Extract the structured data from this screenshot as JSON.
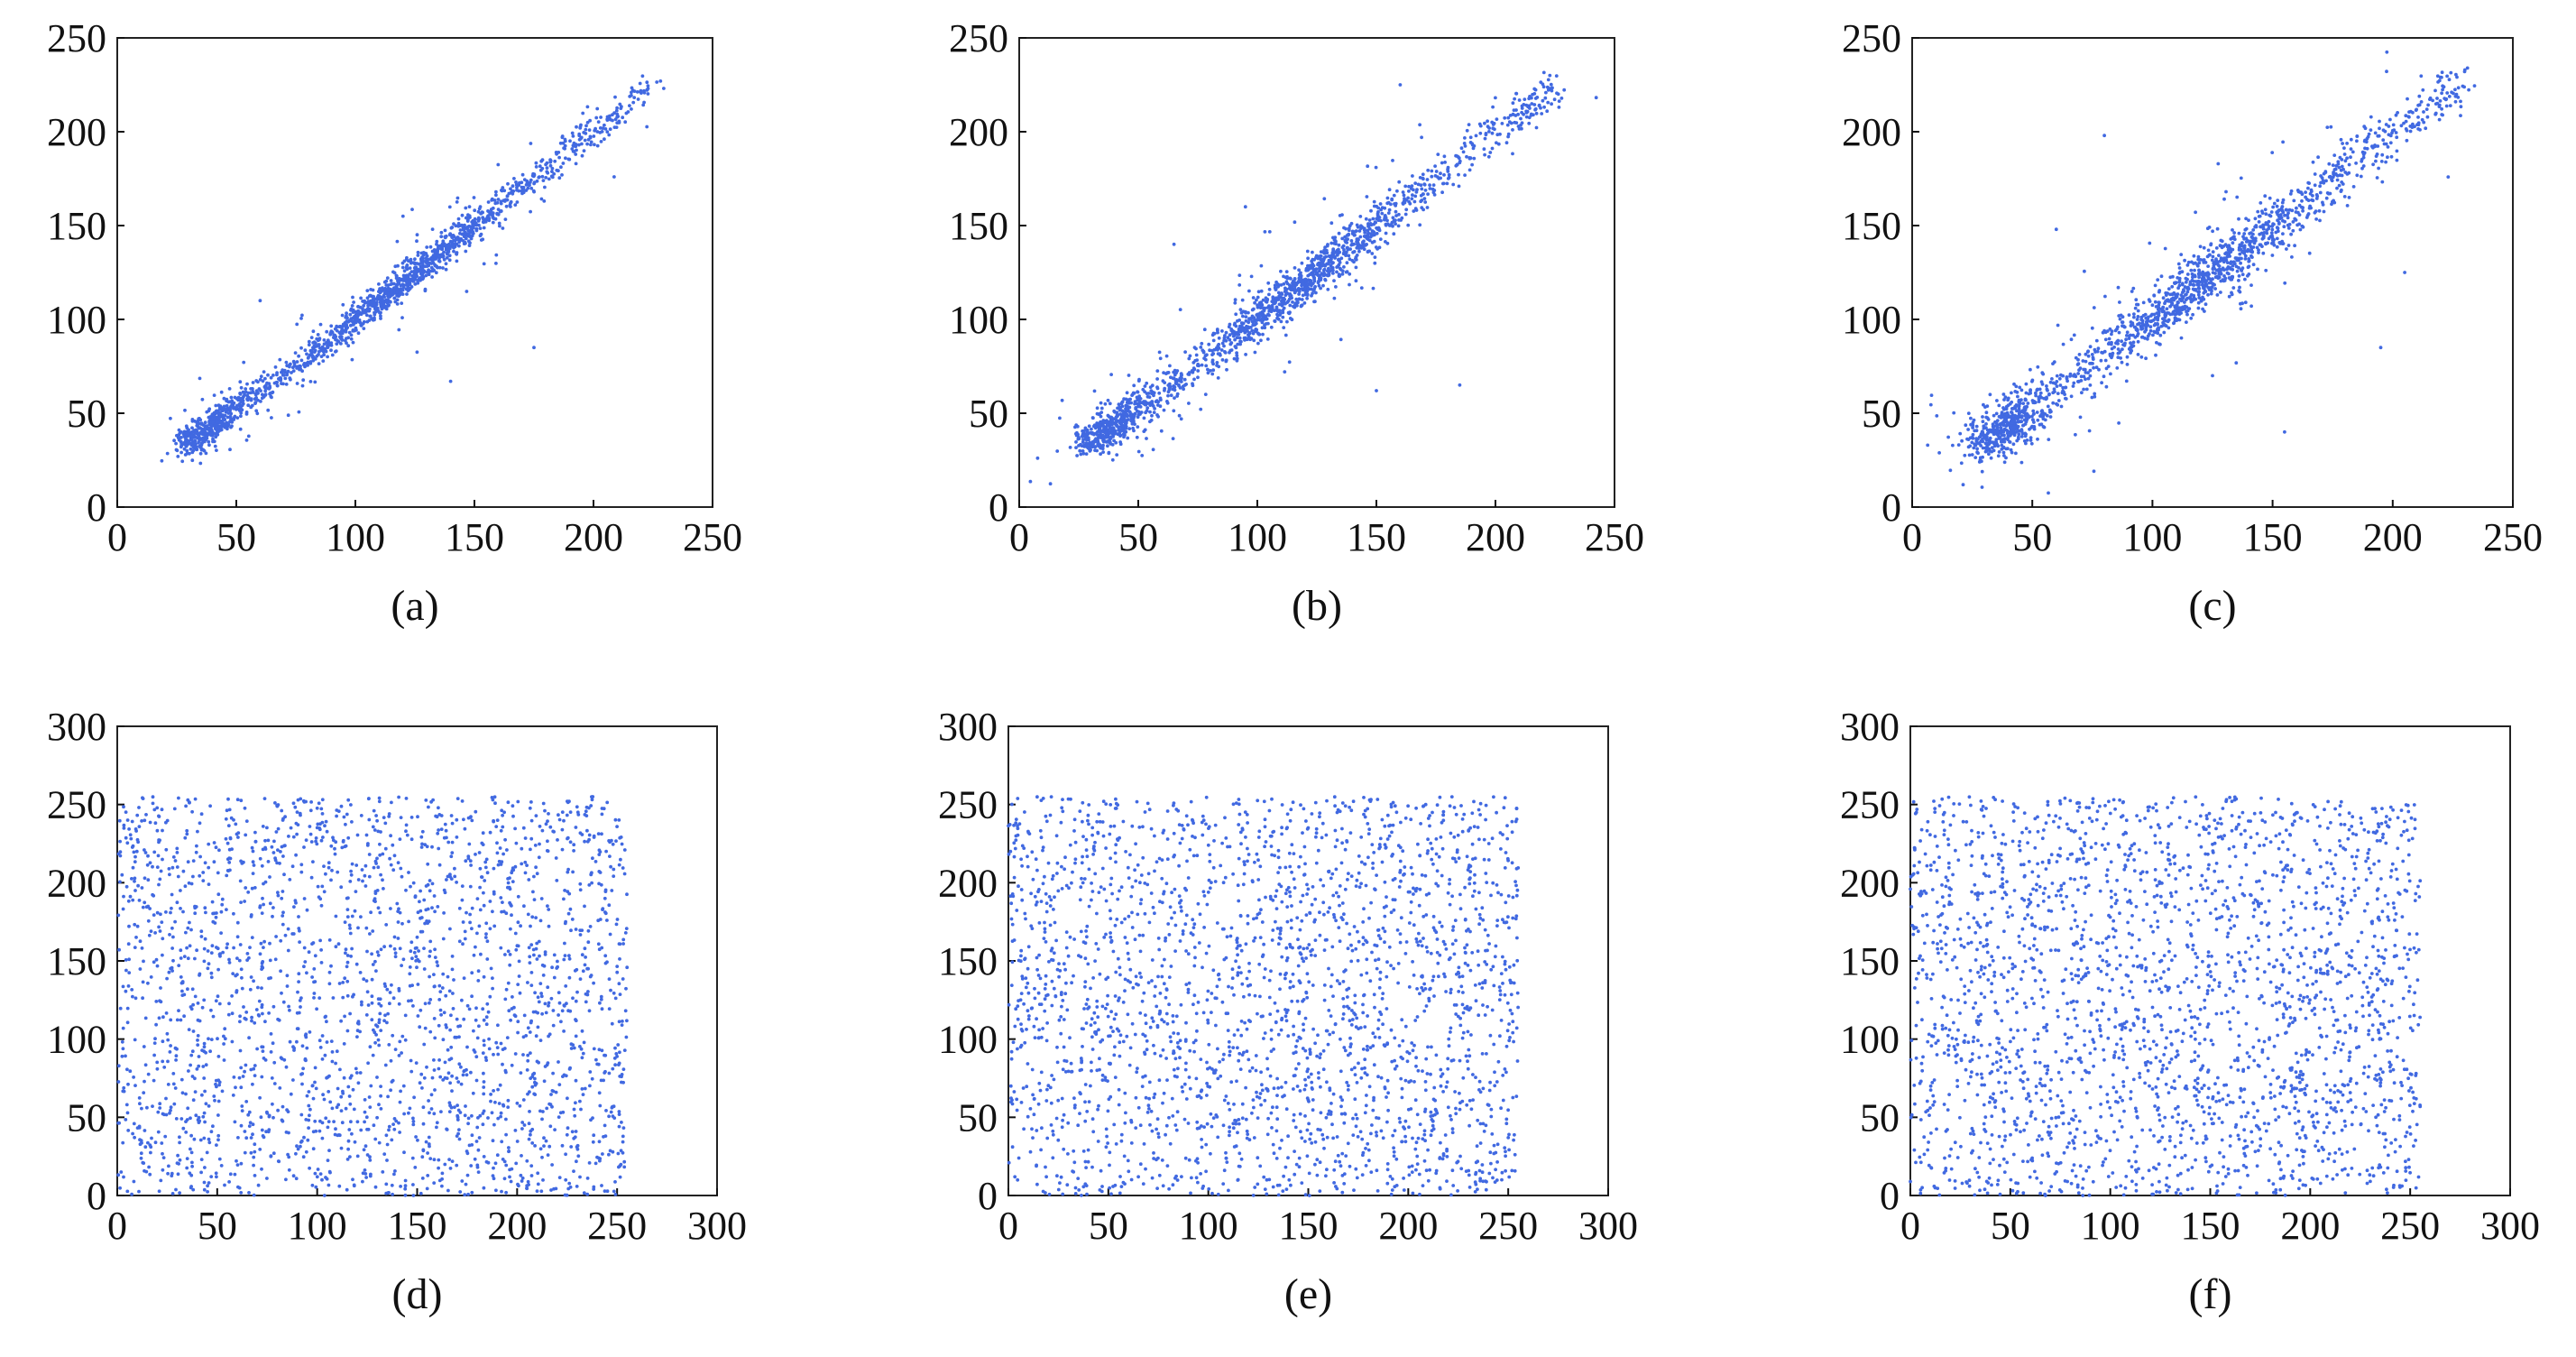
{
  "figure": {
    "point_color": "#4169e1",
    "axis_color": "#111111",
    "frame_color": "#222222"
  },
  "chart_data": [
    {
      "type": "scatter",
      "caption": "(a)",
      "pattern": "correlated",
      "xlim": [
        0,
        250
      ],
      "ylim": [
        0,
        250
      ],
      "xticks": [
        "0",
        "50",
        "100",
        "150",
        "200",
        "250"
      ],
      "yticks": [
        "0",
        "50",
        "100",
        "150",
        "200",
        "250"
      ],
      "value_range": [
        30,
        225
      ],
      "spread": 5.2,
      "n_points": 1700,
      "seed": 11,
      "outliers": [
        [
          175,
          85
        ],
        [
          140,
          67
        ],
        [
          120,
          155
        ],
        [
          60,
          110
        ]
      ]
    },
    {
      "type": "scatter",
      "caption": "(b)",
      "pattern": "correlated",
      "xlim": [
        0,
        250
      ],
      "ylim": [
        0,
        250
      ],
      "xticks": [
        "0",
        "50",
        "100",
        "150",
        "200",
        "250"
      ],
      "yticks": [
        "0",
        "50",
        "100",
        "150",
        "200",
        "250"
      ],
      "value_range": [
        30,
        225
      ],
      "spread": 7.0,
      "n_points": 1700,
      "seed": 23,
      "outliers": [
        [
          160,
          225
        ],
        [
          185,
          65
        ],
        [
          150,
          62
        ],
        [
          65,
          140
        ],
        [
          95,
          160
        ]
      ]
    },
    {
      "type": "scatter",
      "caption": "(c)",
      "pattern": "correlated",
      "xlim": [
        0,
        250
      ],
      "ylim": [
        0,
        250
      ],
      "xticks": [
        "0",
        "50",
        "100",
        "150",
        "200",
        "250"
      ],
      "yticks": [
        "0",
        "50",
        "100",
        "150",
        "200",
        "250"
      ],
      "value_range": [
        30,
        228
      ],
      "spread": 9.0,
      "n_points": 1700,
      "seed": 37,
      "outliers": [
        [
          80,
          198
        ],
        [
          155,
          40
        ],
        [
          195,
          85
        ],
        [
          60,
          148
        ],
        [
          125,
          70
        ],
        [
          205,
          125
        ]
      ]
    },
    {
      "type": "scatter",
      "caption": "(d)",
      "pattern": "uniform",
      "xlim": [
        0,
        300
      ],
      "ylim": [
        0,
        300
      ],
      "xticks": [
        "0",
        "50",
        "100",
        "150",
        "200",
        "250",
        "300"
      ],
      "yticks": [
        "0",
        "50",
        "100",
        "150",
        "200",
        "250",
        "300"
      ],
      "x_range": [
        0,
        255
      ],
      "y_range": [
        0,
        255
      ],
      "n_points": 2400,
      "seed": 51
    },
    {
      "type": "scatter",
      "caption": "(e)",
      "pattern": "uniform",
      "xlim": [
        0,
        300
      ],
      "ylim": [
        0,
        300
      ],
      "xticks": [
        "0",
        "50",
        "100",
        "150",
        "200",
        "250",
        "300"
      ],
      "yticks": [
        "0",
        "50",
        "100",
        "150",
        "200",
        "250",
        "300"
      ],
      "x_range": [
        0,
        255
      ],
      "y_range": [
        0,
        255
      ],
      "n_points": 2400,
      "seed": 67
    },
    {
      "type": "scatter",
      "caption": "(f)",
      "pattern": "uniform",
      "xlim": [
        0,
        300
      ],
      "ylim": [
        0,
        300
      ],
      "xticks": [
        "0",
        "50",
        "100",
        "150",
        "200",
        "250",
        "300"
      ],
      "yticks": [
        "0",
        "50",
        "100",
        "150",
        "200",
        "250",
        "300"
      ],
      "x_range": [
        0,
        255
      ],
      "y_range": [
        0,
        255
      ],
      "n_points": 2400,
      "seed": 83
    }
  ]
}
